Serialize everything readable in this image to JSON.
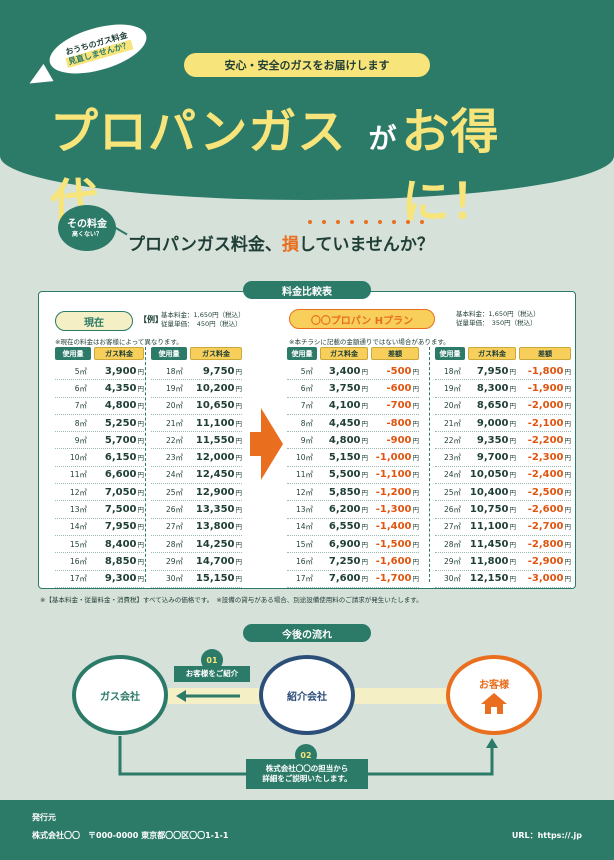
{
  "header": {
    "bubble_line1": "おうちのガス料金",
    "bubble_line2": "見直しませんか？",
    "tagline": "安心・安全のガスをお届けします",
    "title_part1": "プロパンガス代",
    "title_small": "が",
    "title_part2": "お得に！"
  },
  "question": {
    "circle_line1": "その料金",
    "circle_line2": "高くない？",
    "text_before": "プロパンガス料金、",
    "text_emphasis": "損",
    "text_after": "していませんか？"
  },
  "comparison": {
    "label": "料金比較表",
    "current": {
      "pill": "現在",
      "example": "【例】",
      "base_fee": "基本料金：1,650円（税込）",
      "unit_price": "従量単価：　450円（税込）",
      "note": "※現在の料金はお客様によって異なります。",
      "headers": [
        "使用量",
        "ガス料金"
      ],
      "left_rows": [
        [
          "5㎥",
          "3,900"
        ],
        [
          "6㎥",
          "4,350"
        ],
        [
          "7㎥",
          "4,800"
        ],
        [
          "8㎥",
          "5,250"
        ],
        [
          "9㎥",
          "5,700"
        ],
        [
          "10㎥",
          "6,150"
        ],
        [
          "11㎥",
          "6,600"
        ],
        [
          "12㎥",
          "7,050"
        ],
        [
          "13㎥",
          "7,500"
        ],
        [
          "14㎥",
          "7,950"
        ],
        [
          "15㎥",
          "8,400"
        ],
        [
          "16㎥",
          "8,850"
        ],
        [
          "17㎥",
          "9,300"
        ]
      ],
      "right_rows": [
        [
          "18㎥",
          "9,750"
        ],
        [
          "19㎥",
          "10,200"
        ],
        [
          "20㎥",
          "10,650"
        ],
        [
          "21㎥",
          "11,100"
        ],
        [
          "22㎥",
          "11,550"
        ],
        [
          "23㎥",
          "12,000"
        ],
        [
          "24㎥",
          "12,450"
        ],
        [
          "25㎥",
          "12,900"
        ],
        [
          "26㎥",
          "13,350"
        ],
        [
          "27㎥",
          "13,800"
        ],
        [
          "28㎥",
          "14,250"
        ],
        [
          "29㎥",
          "14,700"
        ],
        [
          "30㎥",
          "15,150"
        ]
      ]
    },
    "new_plan": {
      "pill": "〇〇プロパン Hプラン",
      "base_fee": "基本料金：1,650円（税込）",
      "unit_price": "従量単価：　350円（税込）",
      "note": "※本チラシに記載の金額通りではない場合があります。",
      "headers": [
        "使用量",
        "ガス料金",
        "差額"
      ],
      "left_rows": [
        [
          "5㎥",
          "3,400",
          "-500"
        ],
        [
          "6㎥",
          "3,750",
          "-600"
        ],
        [
          "7㎥",
          "4,100",
          "-700"
        ],
        [
          "8㎥",
          "4,450",
          "-800"
        ],
        [
          "9㎥",
          "4,800",
          "-900"
        ],
        [
          "10㎥",
          "5,150",
          "-1,000"
        ],
        [
          "11㎥",
          "5,500",
          "-1,100"
        ],
        [
          "12㎥",
          "5,850",
          "-1,200"
        ],
        [
          "13㎥",
          "6,200",
          "-1,300"
        ],
        [
          "14㎥",
          "6,550",
          "-1,400"
        ],
        [
          "15㎥",
          "6,900",
          "-1,500"
        ],
        [
          "16㎥",
          "7,250",
          "-1,600"
        ],
        [
          "17㎥",
          "7,600",
          "-1,700"
        ]
      ],
      "right_rows": [
        [
          "18㎥",
          "7,950",
          "-1,800"
        ],
        [
          "19㎥",
          "8,300",
          "-1,900"
        ],
        [
          "20㎥",
          "8,650",
          "-2,000"
        ],
        [
          "21㎥",
          "9,000",
          "-2,100"
        ],
        [
          "22㎥",
          "9,350",
          "-2,200"
        ],
        [
          "23㎥",
          "9,700",
          "-2,300"
        ],
        [
          "24㎥",
          "10,050",
          "-2,400"
        ],
        [
          "25㎥",
          "10,400",
          "-2,500"
        ],
        [
          "26㎥",
          "10,750",
          "-2,600"
        ],
        [
          "27㎥",
          "11,100",
          "-2,700"
        ],
        [
          "28㎥",
          "11,450",
          "-2,800"
        ],
        [
          "29㎥",
          "11,800",
          "-2,900"
        ],
        [
          "30㎥",
          "12,150",
          "-3,000"
        ]
      ]
    },
    "yen": "円",
    "footnote": "※【基本料金・従量料金・消費税】すべて込みの価格です。　※設備の貸与がある場合、別途設備使用料のご請求が発生いたします。"
  },
  "flow": {
    "label": "今後の流れ",
    "node_gas": "ガス会社",
    "node_referral": "紹介会社",
    "node_customer": "お客様",
    "step1_num": "01",
    "step1_text": "お客様をご紹介",
    "step2_num": "02",
    "step2_line1": "株式会社〇〇の担当から",
    "step2_line2": "詳細をご説明いたします。"
  },
  "footer": {
    "issuer": "発行元",
    "address": "株式会社〇〇　〒000-0000 東京都〇〇区〇〇1-1-1",
    "url": "URL：https://.jp"
  },
  "colors": {
    "teal": "#2c7a68",
    "yellow": "#f7e47a",
    "orange": "#e96f1f",
    "navy": "#2c4f7a",
    "background": "#d6e1da"
  }
}
